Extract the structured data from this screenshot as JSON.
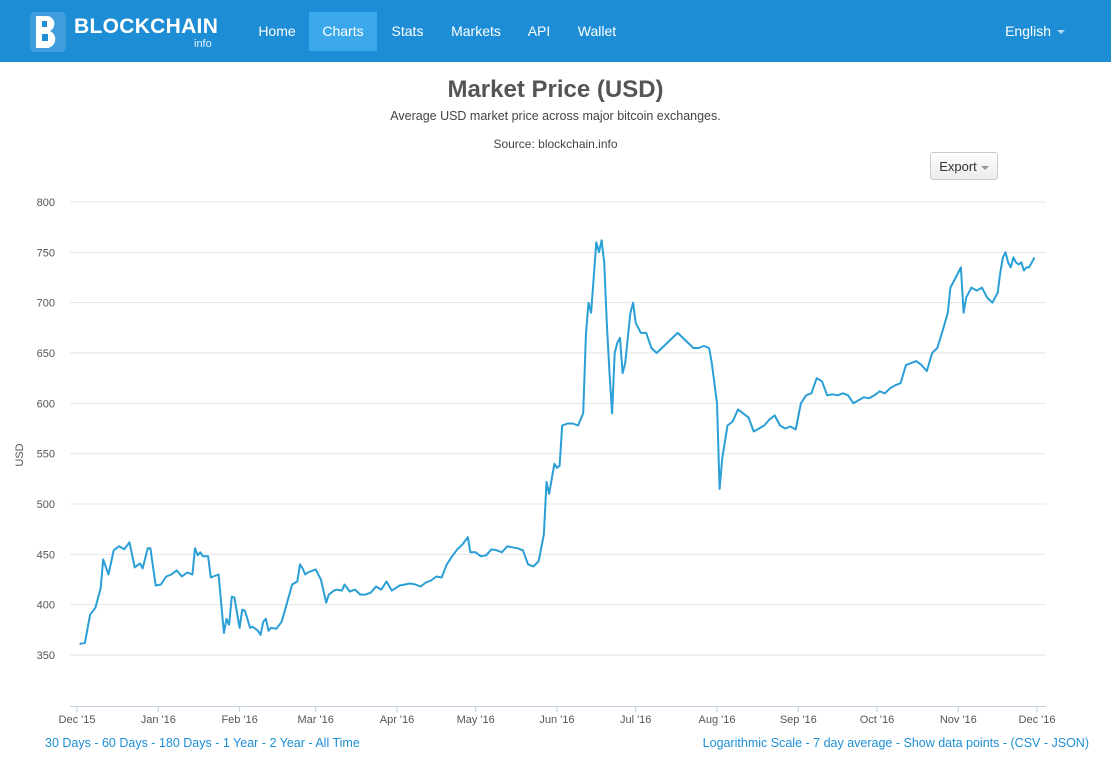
{
  "brand": {
    "name": "BLOCKCHAIN",
    "sub": "info"
  },
  "nav": {
    "items": [
      "Home",
      "Charts",
      "Stats",
      "Markets",
      "API",
      "Wallet"
    ],
    "active": "Charts",
    "language": "English"
  },
  "header": {
    "title": "Market Price (USD)",
    "subtitle": "Average USD market price across major bitcoin exchanges.",
    "source": "Source: blockchain.info",
    "export_label": "Export"
  },
  "footer": {
    "ranges": [
      "30 Days",
      "60 Days",
      "180 Days",
      "1 Year",
      "2 Year",
      "All Time"
    ],
    "options": [
      "Logarithmic Scale",
      "7 day average",
      "Show data points"
    ],
    "csv": "CSV",
    "json": "JSON",
    "separator": " - "
  },
  "colors": {
    "navbar": "#1d8ed6",
    "active_tab": "#3ba8ec",
    "line": "#2a9fd6",
    "link": "#1d8ed6"
  },
  "chart_data": {
    "type": "line",
    "title": "Market Price (USD)",
    "subtitle": "Average USD market price across major bitcoin exchanges.",
    "xlabel": "",
    "ylabel": "USD",
    "ylim": [
      310,
      810
    ],
    "yticks": [
      350,
      400,
      450,
      500,
      550,
      600,
      650,
      700,
      750,
      800
    ],
    "xlim": [
      "2015-12-01",
      "2016-12-01"
    ],
    "xticks": [
      {
        "label": "Dec '15",
        "date": "2015-12-01"
      },
      {
        "label": "Jan '16",
        "date": "2016-01-01"
      },
      {
        "label": "Feb '16",
        "date": "2016-02-01"
      },
      {
        "label": "Mar '16",
        "date": "2016-03-01"
      },
      {
        "label": "Apr '16",
        "date": "2016-04-01"
      },
      {
        "label": "May '16",
        "date": "2016-05-01"
      },
      {
        "label": "Jun '16",
        "date": "2016-06-01"
      },
      {
        "label": "Jul '16",
        "date": "2016-07-01"
      },
      {
        "label": "Aug '16",
        "date": "2016-08-01"
      },
      {
        "label": "Sep '16",
        "date": "2016-09-01"
      },
      {
        "label": "Oct '16",
        "date": "2016-10-01"
      },
      {
        "label": "Nov '16",
        "date": "2016-11-01"
      },
      {
        "label": "Dec '16",
        "date": "2016-12-01"
      }
    ],
    "grid": true,
    "series": [
      {
        "points": [
          [
            "2015-12-02",
            361
          ],
          [
            "2015-12-04",
            362
          ],
          [
            "2015-12-06",
            390
          ],
          [
            "2015-12-08",
            397
          ],
          [
            "2015-12-10",
            416
          ],
          [
            "2015-12-11",
            445
          ],
          [
            "2015-12-13",
            430
          ],
          [
            "2015-12-15",
            454
          ],
          [
            "2015-12-17",
            458
          ],
          [
            "2015-12-19",
            455
          ],
          [
            "2015-12-21",
            462
          ],
          [
            "2015-12-23",
            437
          ],
          [
            "2015-12-25",
            441
          ],
          [
            "2015-12-26",
            436
          ],
          [
            "2015-12-28",
            456
          ],
          [
            "2015-12-29",
            456
          ],
          [
            "2015-12-31",
            419
          ],
          [
            "2016-01-02",
            420
          ],
          [
            "2016-01-04",
            428
          ],
          [
            "2016-01-06",
            430
          ],
          [
            "2016-01-08",
            434
          ],
          [
            "2016-01-10",
            428
          ],
          [
            "2016-01-12",
            432
          ],
          [
            "2016-01-14",
            430
          ],
          [
            "2016-01-15",
            456
          ],
          [
            "2016-01-16",
            449
          ],
          [
            "2016-01-17",
            452
          ],
          [
            "2016-01-18",
            448
          ],
          [
            "2016-01-20",
            448
          ],
          [
            "2016-01-21",
            427
          ],
          [
            "2016-01-24",
            430
          ],
          [
            "2016-01-26",
            372
          ],
          [
            "2016-01-27",
            386
          ],
          [
            "2016-01-28",
            380
          ],
          [
            "2016-01-29",
            408
          ],
          [
            "2016-01-30",
            407
          ],
          [
            "2016-02-01",
            377
          ],
          [
            "2016-02-02",
            395
          ],
          [
            "2016-02-03",
            394
          ],
          [
            "2016-02-05",
            377
          ],
          [
            "2016-02-06",
            378
          ],
          [
            "2016-02-08",
            374
          ],
          [
            "2016-02-09",
            370
          ],
          [
            "2016-02-10",
            383
          ],
          [
            "2016-02-11",
            386
          ],
          [
            "2016-02-12",
            374
          ],
          [
            "2016-02-13",
            377
          ],
          [
            "2016-02-15",
            376
          ],
          [
            "2016-02-17",
            383
          ],
          [
            "2016-02-19",
            401
          ],
          [
            "2016-02-21",
            420
          ],
          [
            "2016-02-23",
            423
          ],
          [
            "2016-02-24",
            440
          ],
          [
            "2016-02-25",
            436
          ],
          [
            "2016-02-26",
            430
          ],
          [
            "2016-02-27",
            432
          ],
          [
            "2016-03-01",
            435
          ],
          [
            "2016-03-03",
            425
          ],
          [
            "2016-03-05",
            402
          ],
          [
            "2016-03-06",
            410
          ],
          [
            "2016-03-08",
            414
          ],
          [
            "2016-03-09",
            415
          ],
          [
            "2016-03-11",
            414
          ],
          [
            "2016-03-12",
            420
          ],
          [
            "2016-03-14",
            413
          ],
          [
            "2016-03-16",
            415
          ],
          [
            "2016-03-18",
            410
          ],
          [
            "2016-03-20",
            410
          ],
          [
            "2016-03-22",
            412
          ],
          [
            "2016-03-24",
            418
          ],
          [
            "2016-03-26",
            415
          ],
          [
            "2016-03-28",
            423
          ],
          [
            "2016-03-30",
            414
          ],
          [
            "2016-04-02",
            419
          ],
          [
            "2016-04-04",
            420
          ],
          [
            "2016-04-06",
            421
          ],
          [
            "2016-04-08",
            420
          ],
          [
            "2016-04-10",
            418
          ],
          [
            "2016-04-12",
            422
          ],
          [
            "2016-04-14",
            424
          ],
          [
            "2016-04-16",
            428
          ],
          [
            "2016-04-18",
            427
          ],
          [
            "2016-04-20",
            440
          ],
          [
            "2016-04-22",
            448
          ],
          [
            "2016-04-24",
            455
          ],
          [
            "2016-04-26",
            460
          ],
          [
            "2016-04-28",
            467
          ],
          [
            "2016-04-29",
            452
          ],
          [
            "2016-05-01",
            452
          ],
          [
            "2016-05-03",
            448
          ],
          [
            "2016-05-05",
            449
          ],
          [
            "2016-05-07",
            455
          ],
          [
            "2016-05-09",
            454
          ],
          [
            "2016-05-11",
            452
          ],
          [
            "2016-05-13",
            458
          ],
          [
            "2016-05-15",
            457
          ],
          [
            "2016-05-17",
            456
          ],
          [
            "2016-05-19",
            454
          ],
          [
            "2016-05-21",
            440
          ],
          [
            "2016-05-23",
            438
          ],
          [
            "2016-05-25",
            443
          ],
          [
            "2016-05-27",
            470
          ],
          [
            "2016-05-28",
            522
          ],
          [
            "2016-05-29",
            510
          ],
          [
            "2016-05-31",
            540
          ],
          [
            "2016-06-01",
            536
          ],
          [
            "2016-06-02",
            538
          ],
          [
            "2016-06-03",
            578
          ],
          [
            "2016-06-05",
            580
          ],
          [
            "2016-06-07",
            580
          ],
          [
            "2016-06-09",
            578
          ],
          [
            "2016-06-11",
            590
          ],
          [
            "2016-06-12",
            668
          ],
          [
            "2016-06-13",
            700
          ],
          [
            "2016-06-14",
            690
          ],
          [
            "2016-06-16",
            760
          ],
          [
            "2016-06-17",
            750
          ],
          [
            "2016-06-18",
            762
          ],
          [
            "2016-06-19",
            740
          ],
          [
            "2016-06-20",
            680
          ],
          [
            "2016-06-21",
            630
          ],
          [
            "2016-06-22",
            590
          ],
          [
            "2016-06-23",
            650
          ],
          [
            "2016-06-24",
            660
          ],
          [
            "2016-06-25",
            665
          ],
          [
            "2016-06-26",
            630
          ],
          [
            "2016-06-27",
            640
          ],
          [
            "2016-06-29",
            690
          ],
          [
            "2016-06-30",
            700
          ],
          [
            "2016-07-01",
            680
          ],
          [
            "2016-07-03",
            670
          ],
          [
            "2016-07-05",
            670
          ],
          [
            "2016-07-07",
            655
          ],
          [
            "2016-07-09",
            650
          ],
          [
            "2016-07-11",
            655
          ],
          [
            "2016-07-13",
            660
          ],
          [
            "2016-07-15",
            665
          ],
          [
            "2016-07-17",
            670
          ],
          [
            "2016-07-19",
            665
          ],
          [
            "2016-07-21",
            660
          ],
          [
            "2016-07-23",
            655
          ],
          [
            "2016-07-25",
            655
          ],
          [
            "2016-07-27",
            657
          ],
          [
            "2016-07-29",
            655
          ],
          [
            "2016-07-30",
            640
          ],
          [
            "2016-07-31",
            620
          ],
          [
            "2016-08-01",
            600
          ],
          [
            "2016-08-02",
            515
          ],
          [
            "2016-08-03",
            545
          ],
          [
            "2016-08-05",
            578
          ],
          [
            "2016-08-07",
            582
          ],
          [
            "2016-08-09",
            594
          ],
          [
            "2016-08-11",
            590
          ],
          [
            "2016-08-13",
            586
          ],
          [
            "2016-08-15",
            572
          ],
          [
            "2016-08-17",
            575
          ],
          [
            "2016-08-19",
            578
          ],
          [
            "2016-08-21",
            584
          ],
          [
            "2016-08-23",
            588
          ],
          [
            "2016-08-25",
            578
          ],
          [
            "2016-08-27",
            575
          ],
          [
            "2016-08-29",
            577
          ],
          [
            "2016-08-31",
            574
          ],
          [
            "2016-09-02",
            600
          ],
          [
            "2016-09-04",
            608
          ],
          [
            "2016-09-06",
            610
          ],
          [
            "2016-09-08",
            625
          ],
          [
            "2016-09-10",
            622
          ],
          [
            "2016-09-12",
            608
          ],
          [
            "2016-09-14",
            609
          ],
          [
            "2016-09-16",
            608
          ],
          [
            "2016-09-18",
            610
          ],
          [
            "2016-09-20",
            608
          ],
          [
            "2016-09-22",
            600
          ],
          [
            "2016-09-24",
            603
          ],
          [
            "2016-09-26",
            606
          ],
          [
            "2016-09-28",
            605
          ],
          [
            "2016-09-30",
            608
          ],
          [
            "2016-10-02",
            612
          ],
          [
            "2016-10-04",
            610
          ],
          [
            "2016-10-06",
            615
          ],
          [
            "2016-10-08",
            618
          ],
          [
            "2016-10-10",
            620
          ],
          [
            "2016-10-12",
            638
          ],
          [
            "2016-10-14",
            640
          ],
          [
            "2016-10-16",
            642
          ],
          [
            "2016-10-18",
            638
          ],
          [
            "2016-10-20",
            632
          ],
          [
            "2016-10-22",
            650
          ],
          [
            "2016-10-24",
            655
          ],
          [
            "2016-10-26",
            672
          ],
          [
            "2016-10-28",
            690
          ],
          [
            "2016-10-29",
            715
          ],
          [
            "2016-10-30",
            720
          ],
          [
            "2016-11-01",
            730
          ],
          [
            "2016-11-02",
            735
          ],
          [
            "2016-11-03",
            690
          ],
          [
            "2016-11-04",
            705
          ],
          [
            "2016-11-05",
            710
          ],
          [
            "2016-11-06",
            715
          ],
          [
            "2016-11-08",
            712
          ],
          [
            "2016-11-10",
            715
          ],
          [
            "2016-11-12",
            705
          ],
          [
            "2016-11-14",
            700
          ],
          [
            "2016-11-16",
            710
          ],
          [
            "2016-11-17",
            730
          ],
          [
            "2016-11-18",
            745
          ],
          [
            "2016-11-19",
            750
          ],
          [
            "2016-11-20",
            740
          ],
          [
            "2016-11-21",
            735
          ],
          [
            "2016-11-22",
            745
          ],
          [
            "2016-11-23",
            740
          ],
          [
            "2016-11-24",
            738
          ],
          [
            "2016-11-25",
            740
          ],
          [
            "2016-11-26",
            732
          ],
          [
            "2016-11-27",
            735
          ],
          [
            "2016-11-28",
            735
          ],
          [
            "2016-11-29",
            740
          ],
          [
            "2016-11-30",
            745
          ]
        ]
      }
    ]
  }
}
